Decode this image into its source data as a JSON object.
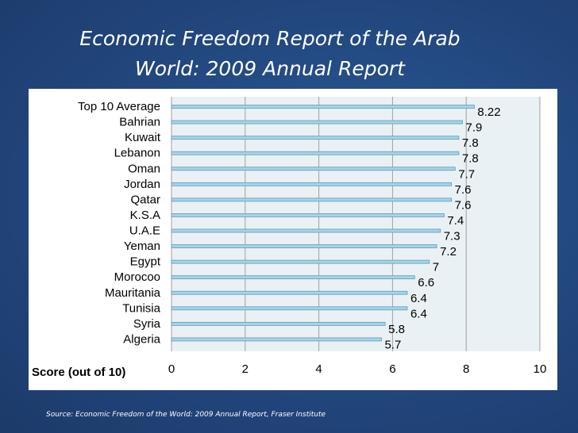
{
  "slide": {
    "title_line1": "Economic Freedom Report of the Arab",
    "title_line2": "World: 2009 Annual Report",
    "source": "Source: Economic Freedom of the World: 2009 Annual Report,  Fraser  Institute"
  },
  "chart_data": {
    "type": "bar",
    "orientation": "horizontal",
    "categories": [
      "Top 10 Average",
      "Bahrian",
      "Kuwait",
      "Lebanon",
      "Oman",
      "Jordan",
      "Qatar",
      "K.S.A",
      "U.A.E",
      "Yeman",
      "Egypt",
      "Morocoo",
      "Mauritania",
      "Tunisia",
      "Syria",
      "Algeria"
    ],
    "values": [
      8.22,
      7.9,
      7.8,
      7.8,
      7.7,
      7.6,
      7.6,
      7.4,
      7.3,
      7.2,
      7,
      6.6,
      6.4,
      6.4,
      5.8,
      5.7
    ],
    "value_labels": [
      "8.22",
      "7.9",
      "7.8",
      "7.8",
      "7.7",
      "7.6",
      "7.6",
      "7.4",
      "7.3",
      "7.2",
      "7",
      "6.6",
      "6.4",
      "6.4",
      "5.8",
      "5.7"
    ],
    "xlabel": "Score (out of 10)",
    "xlim": [
      0,
      10
    ],
    "xticks": [
      "0",
      "2",
      "4",
      "6",
      "8",
      "10"
    ],
    "grid": "vertical",
    "colors": {
      "bar_fill": "#a8d3e6",
      "bar_stroke": "#5b9bc0",
      "plot_bg": "#eaf1f5",
      "grid": "#a0a0a0"
    }
  }
}
